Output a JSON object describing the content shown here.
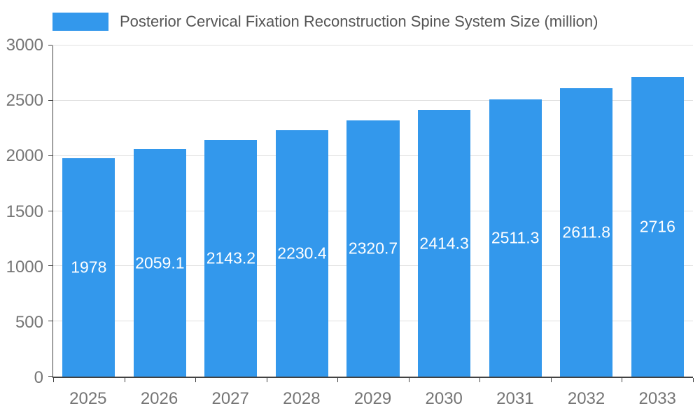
{
  "chart_data": {
    "type": "bar",
    "title": "Posterior Cervical Fixation Reconstruction Spine System Size (million)",
    "legend_position": "top",
    "grid": true,
    "categories": [
      "2025",
      "2026",
      "2027",
      "2028",
      "2029",
      "2030",
      "2031",
      "2032",
      "2033"
    ],
    "values": [
      1978,
      2059.1,
      2143.2,
      2230.4,
      2320.7,
      2414.3,
      2511.3,
      2611.8,
      2716
    ],
    "value_labels": [
      "1978",
      "2059.1",
      "2143.2",
      "2230.4",
      "2320.7",
      "2414.3",
      "2511.3",
      "2611.8",
      "2716"
    ],
    "xlabel": "",
    "ylabel": "",
    "ylim": [
      0,
      3000
    ],
    "yticks": [
      0,
      500,
      1000,
      1500,
      2000,
      2500,
      3000
    ],
    "ytick_labels": [
      "0",
      "500",
      "1000",
      "1500",
      "2000",
      "2500",
      "3000"
    ],
    "colors": {
      "bar": "#3398EC",
      "grid": "#E0E0E0",
      "axis_text": "#757575",
      "axis_line": "#424242",
      "title_text": "#555555",
      "bar_label": "#FFFFFF",
      "background": "#FFFFFF"
    }
  }
}
